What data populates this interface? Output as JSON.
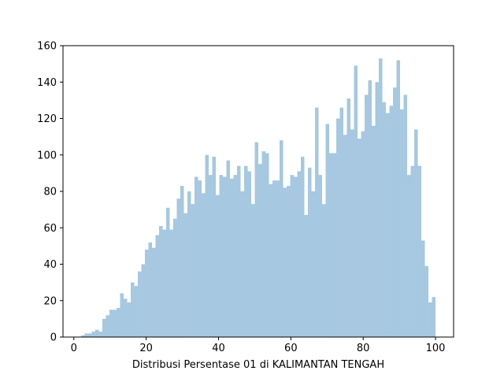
{
  "chart_data": {
    "type": "bar",
    "xlabel": "Distribusi Persentase 01 di KALIMANTAN TENGAH",
    "ylabel": "",
    "title": "",
    "xlim": [
      -3,
      105
    ],
    "ylim": [
      0,
      160
    ],
    "xticks": [
      0,
      20,
      40,
      60,
      80,
      100
    ],
    "yticks": [
      0,
      20,
      40,
      60,
      80,
      100,
      120,
      140,
      160
    ],
    "bar_color": "#a6c8e0",
    "bin_width": 0.98,
    "x": [
      2.0,
      2.98,
      3.96,
      4.94,
      5.92,
      6.9,
      7.88,
      8.86,
      9.84,
      10.82,
      11.8,
      12.78,
      13.76,
      14.74,
      15.72,
      16.7,
      17.68,
      18.66,
      19.64,
      20.62,
      21.6,
      22.58,
      23.56,
      24.54,
      25.52,
      26.5,
      27.48,
      28.46,
      29.44,
      30.42,
      31.4,
      32.38,
      33.36,
      34.34,
      35.32,
      36.3,
      37.28,
      38.26,
      39.24,
      40.22,
      41.2,
      42.18,
      43.16,
      44.14,
      45.12,
      46.1,
      47.08,
      48.06,
      49.04,
      50.02,
      51.0,
      51.98,
      52.96,
      53.94,
      54.92,
      55.9,
      56.88,
      57.86,
      58.84,
      59.82,
      60.8,
      61.78,
      62.76,
      63.74,
      64.72,
      65.7,
      66.68,
      67.66,
      68.64,
      69.62,
      70.6,
      71.58,
      72.56,
      73.54,
      74.52,
      75.5,
      76.48,
      77.46,
      78.44,
      79.42,
      80.4,
      81.38,
      82.36,
      83.34,
      84.32,
      85.3,
      86.28,
      87.26,
      88.24,
      89.22,
      90.2,
      91.18,
      92.16,
      93.14,
      94.12,
      95.1,
      96.08,
      97.06,
      98.04,
      99.02
    ],
    "values": [
      1,
      2,
      2,
      3,
      4,
      3,
      10,
      12,
      15,
      15,
      16,
      24,
      21,
      19,
      30,
      28,
      36,
      40,
      48,
      52,
      49,
      56,
      61,
      59,
      71,
      59,
      65,
      76,
      83,
      68,
      80,
      73,
      88,
      86,
      79,
      100,
      89,
      99,
      78,
      89,
      88,
      97,
      87,
      89,
      94,
      80,
      94,
      91,
      73,
      107,
      95,
      102,
      101,
      84,
      86,
      86,
      108,
      82,
      83,
      89,
      88,
      91,
      99,
      67,
      93,
      80,
      126,
      89,
      73,
      117,
      101,
      101,
      120,
      126,
      111,
      131,
      114,
      149,
      109,
      113,
      133,
      141,
      116,
      140,
      153,
      129,
      123,
      127,
      137,
      152,
      125,
      133,
      89,
      94,
      114,
      94,
      53,
      39,
      19,
      22
    ]
  }
}
